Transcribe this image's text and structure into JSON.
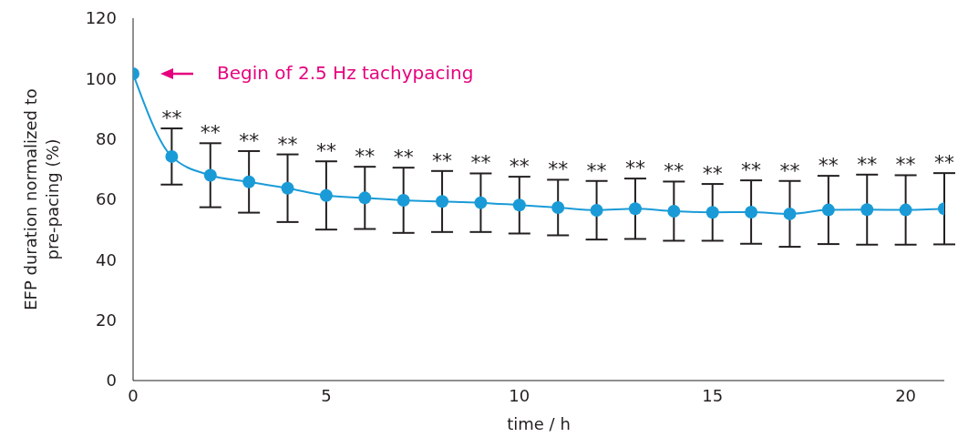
{
  "chart_data": {
    "type": "line",
    "xlabel": "time / h",
    "ylabel": "EFP duration normalized to\npre-pacing (%)",
    "x": [
      0,
      1,
      2,
      3,
      4,
      5,
      6,
      7,
      8,
      9,
      10,
      11,
      12,
      13,
      14,
      15,
      16,
      17,
      18,
      19,
      20,
      21
    ],
    "series": [
      {
        "color": "#1a9bd7",
        "values": [
          101.6,
          74.2,
          68.0,
          65.8,
          63.7,
          61.3,
          60.5,
          59.7,
          59.3,
          58.9,
          58.1,
          57.3,
          56.4,
          56.9,
          56.1,
          55.7,
          55.8,
          55.2,
          56.5,
          56.6,
          56.5,
          56.9
        ],
        "errors": [
          null,
          9.3,
          10.6,
          10.2,
          11.2,
          11.3,
          10.3,
          10.8,
          10.1,
          9.7,
          9.4,
          9.2,
          9.7,
          10,
          9.8,
          9.4,
          10.5,
          10.9,
          11.3,
          11.6,
          11.5,
          11.8
        ]
      }
    ],
    "xlim": [
      0,
      21
    ],
    "xticks": [
      0,
      5,
      10,
      15,
      20
    ],
    "ylim": [
      0,
      120
    ],
    "yticks": [
      0,
      20,
      40,
      60,
      80,
      100,
      120
    ],
    "grid": false,
    "legend": false,
    "marker": "circle",
    "line_style": "solid",
    "annotations": [
      "Begin of 2.5 Hz tachypacing",
      {
        "text": "**",
        "x": 1,
        "y": 83.5
      },
      {
        "text": "**",
        "x": 2,
        "y": 78.6
      },
      {
        "text": "**",
        "x": 3,
        "y": 76
      },
      {
        "text": "**",
        "x": 4,
        "y": 74.9
      },
      {
        "text": "**",
        "x": 5,
        "y": 72.6
      },
      {
        "text": "**",
        "x": 6,
        "y": 70.8
      },
      {
        "text": "**",
        "x": 7,
        "y": 70.5
      },
      {
        "text": "**",
        "x": 8,
        "y": 69.4
      },
      {
        "text": "**",
        "x": 9,
        "y": 68.6
      },
      {
        "text": "**",
        "x": 10,
        "y": 67.5
      },
      {
        "text": "**",
        "x": 11,
        "y": 66.5
      },
      {
        "text": "**",
        "x": 12,
        "y": 66.1
      },
      {
        "text": "**",
        "x": 13,
        "y": 66.9
      },
      {
        "text": "**",
        "x": 14,
        "y": 65.9
      },
      {
        "text": "**",
        "x": 15,
        "y": 65.1
      },
      {
        "text": "**",
        "x": 16,
        "y": 66.3
      },
      {
        "text": "**",
        "x": 17,
        "y": 66.1
      },
      {
        "text": "**",
        "x": 18,
        "y": 67.8
      },
      {
        "text": "**",
        "x": 19,
        "y": 68.2
      },
      {
        "text": "**",
        "x": 20,
        "y": 68
      },
      {
        "text": "**",
        "x": 21,
        "y": 68.7
      }
    ]
  }
}
